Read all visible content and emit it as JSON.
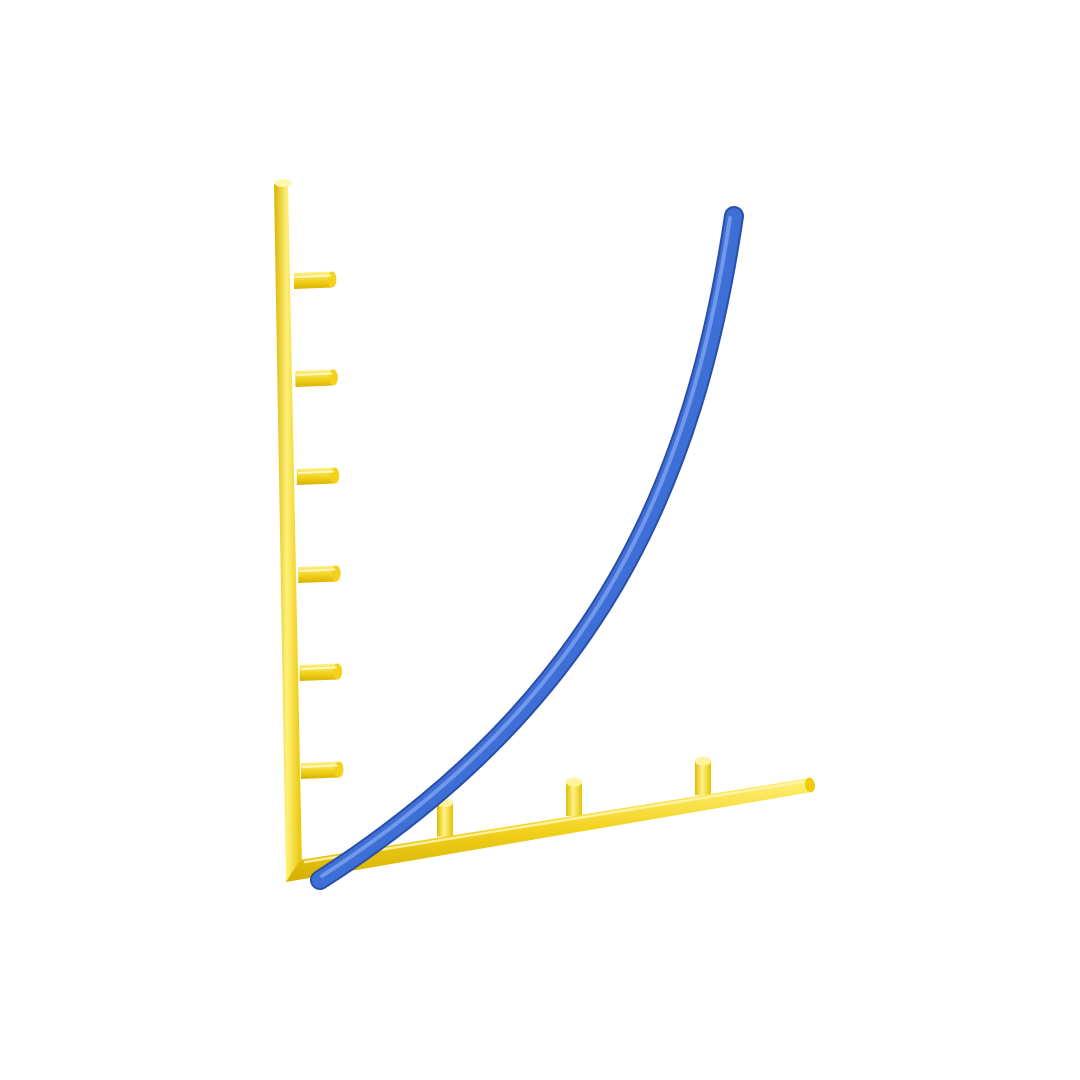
{
  "illustration": {
    "kind": "3d-growth-chart-icon",
    "background_color": "#ffffff",
    "axis_color": "#f2d21e",
    "axis_highlight_color": "#fff3a0",
    "axis_shadow_color": "#c9a800",
    "curve_color": "#3d6fd6",
    "curve_highlight_color": "#7ea2f0",
    "curve_shadow_color": "#2a4fa8",
    "y_axis_tick_count": 6,
    "x_axis_tick_count": 3,
    "curve_shape": "exponential"
  }
}
